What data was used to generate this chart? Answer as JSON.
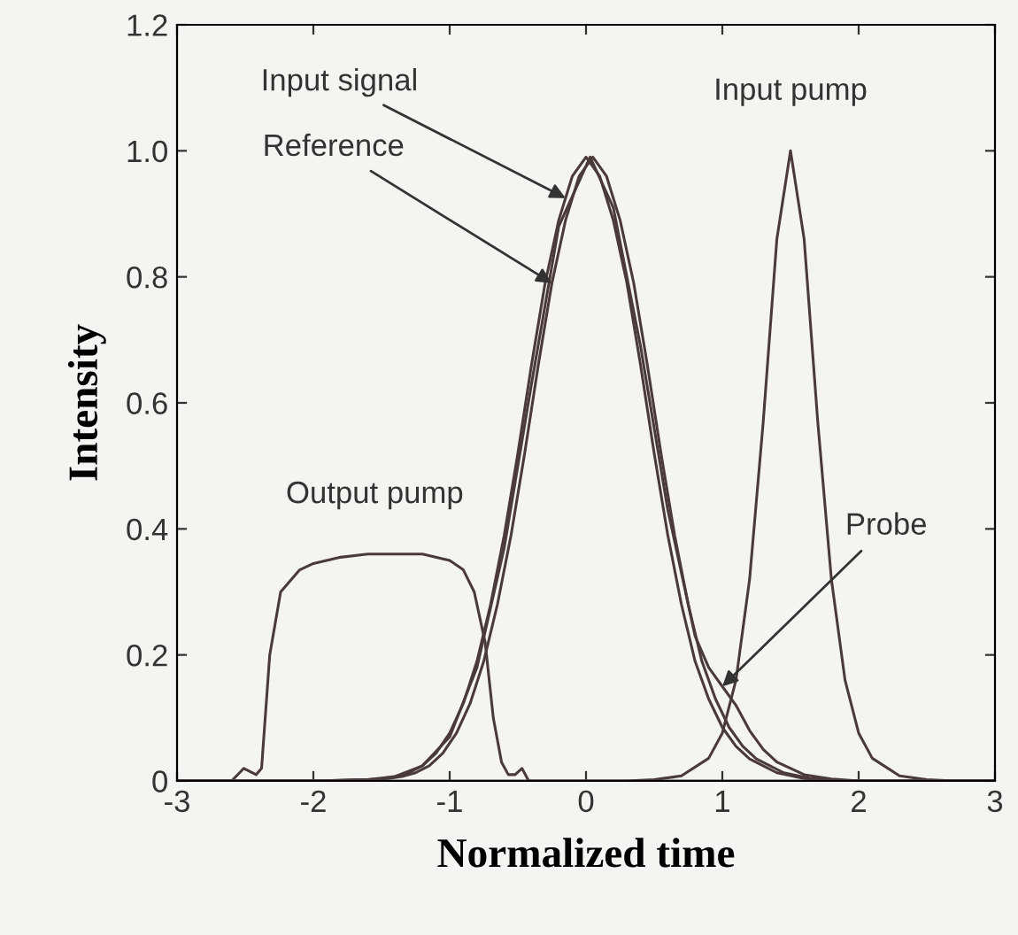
{
  "chart_data": {
    "type": "line",
    "xlabel": "Normalized time",
    "ylabel": "Intensity",
    "xlim": [
      -3,
      3
    ],
    "ylim": [
      0,
      1.2
    ],
    "xticks": [
      {
        "value": -3,
        "label": "-3"
      },
      {
        "value": -2,
        "label": "-2"
      },
      {
        "value": -1,
        "label": "-1"
      },
      0,
      1,
      2,
      3
    ],
    "yticks": [
      0,
      0.2,
      0.4,
      0.6,
      0.8,
      {
        "value": 1.0,
        "label": "1.0"
      },
      1.2
    ],
    "grid": false,
    "legend": false,
    "marker": "none",
    "line_style": "solid",
    "series": [
      {
        "color": "#4a3a3a",
        "x": [
          -3,
          -2,
          -1.8,
          -1.6,
          -1.5,
          -1.4,
          -1.3,
          -1.2,
          -1.1,
          -1.0,
          -0.9,
          -0.8,
          -0.7,
          -0.6,
          -0.5,
          -0.4,
          -0.3,
          -0.2,
          -0.1,
          0,
          0.1,
          0.2,
          0.3,
          0.4,
          0.5,
          0.6,
          0.7,
          0.8,
          0.9,
          1.0,
          1.1,
          1.2,
          1.4,
          1.6,
          1.8,
          2.0,
          3
        ],
        "values": [
          0,
          0,
          0.001,
          0.002,
          0.004,
          0.007,
          0.013,
          0.024,
          0.044,
          0.076,
          0.123,
          0.19,
          0.28,
          0.39,
          0.52,
          0.66,
          0.79,
          0.89,
          0.96,
          0.99,
          0.96,
          0.89,
          0.79,
          0.66,
          0.52,
          0.39,
          0.28,
          0.19,
          0.13,
          0.085,
          0.055,
          0.035,
          0.013,
          0.004,
          0.001,
          0,
          0
        ]
      },
      {
        "color": "#4a3a3a",
        "x": [
          -3,
          -1.95,
          -1.75,
          -1.55,
          -1.45,
          -1.35,
          -1.25,
          -1.15,
          -1.05,
          -0.95,
          -0.85,
          -0.75,
          -0.65,
          -0.55,
          -0.45,
          -0.35,
          -0.25,
          -0.15,
          -0.05,
          0.05,
          0.15,
          0.25,
          0.35,
          0.45,
          0.55,
          0.65,
          0.75,
          0.85,
          0.95,
          1.05,
          1.15,
          1.25,
          1.45,
          1.65,
          1.85,
          2.05,
          3
        ],
        "values": [
          0,
          0,
          0.001,
          0.002,
          0.004,
          0.007,
          0.013,
          0.024,
          0.044,
          0.076,
          0.123,
          0.19,
          0.28,
          0.39,
          0.52,
          0.66,
          0.79,
          0.89,
          0.96,
          0.99,
          0.96,
          0.89,
          0.79,
          0.66,
          0.52,
          0.39,
          0.28,
          0.19,
          0.13,
          0.085,
          0.055,
          0.035,
          0.013,
          0.004,
          0.001,
          0,
          0
        ]
      },
      {
        "color": "#4a3a3a",
        "x": [
          -3,
          -2,
          -1.6,
          -1.4,
          -1.2,
          -1.0,
          -0.8,
          -0.6,
          -0.4,
          -0.2,
          0.03,
          0.2,
          0.4,
          0.6,
          0.8,
          0.9,
          1.0,
          1.1,
          1.2,
          1.3,
          1.4,
          1.6,
          1.8,
          2.0,
          3
        ],
        "values": [
          0,
          0,
          0.002,
          0.007,
          0.024,
          0.07,
          0.18,
          0.37,
          0.63,
          0.88,
          0.99,
          0.91,
          0.69,
          0.43,
          0.23,
          0.18,
          0.15,
          0.12,
          0.08,
          0.05,
          0.03,
          0.01,
          0.003,
          0,
          0
        ]
      },
      {
        "color": "#4a3a3a",
        "x": [
          -3,
          0.3,
          0.5,
          0.7,
          0.9,
          1.0,
          1.1,
          1.2,
          1.3,
          1.4,
          1.5,
          1.6,
          1.7,
          1.8,
          1.9,
          2.0,
          2.1,
          2.3,
          2.5,
          2.7,
          3
        ],
        "values": [
          0,
          0,
          0.002,
          0.008,
          0.036,
          0.076,
          0.16,
          0.32,
          0.57,
          0.86,
          1.0,
          0.86,
          0.57,
          0.32,
          0.16,
          0.076,
          0.036,
          0.008,
          0.002,
          0,
          0
        ]
      },
      {
        "color": "#4a3a3a",
        "x": [
          -3,
          -2.6,
          -2.51,
          -2.42,
          -2.38,
          -2.32,
          -2.24,
          -2.1,
          -2.0,
          -1.8,
          -1.6,
          -1.2,
          -1.0,
          -0.9,
          -0.82,
          -0.74,
          -0.68,
          -0.62,
          -0.57,
          -0.52,
          -0.47,
          -0.42,
          3
        ],
        "values": [
          0,
          0,
          0.02,
          0.01,
          0.02,
          0.2,
          0.3,
          0.335,
          0.345,
          0.355,
          0.36,
          0.36,
          0.35,
          0.335,
          0.3,
          0.22,
          0.1,
          0.03,
          0.01,
          0.01,
          0.02,
          0,
          0
        ]
      }
    ],
    "annotations": [
      {
        "text": "Input signal",
        "x": -0.15,
        "y": 0.925
      },
      {
        "text": "Reference",
        "x": -0.25,
        "y": 0.79
      },
      {
        "text": "Input pump",
        "x": 1.5,
        "y": 1.0
      },
      {
        "text": "Output pump",
        "x": -1.55,
        "y": 0.36
      },
      {
        "text": "Probe",
        "x": 1.0,
        "y": 0.15
      }
    ]
  }
}
